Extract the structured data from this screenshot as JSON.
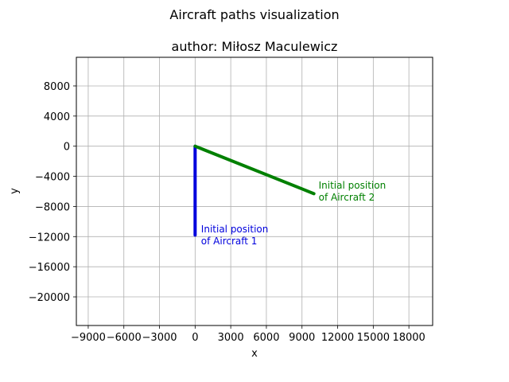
{
  "chart_data": {
    "type": "line",
    "title": "Aircraft paths visualization",
    "subtitle": "author: Miłosz Maculewicz",
    "xlabel": "x",
    "ylabel": "y",
    "xlim": [
      -10000,
      20000
    ],
    "ylim": [
      -23800,
      11800
    ],
    "x_ticks": [
      -9000,
      -6000,
      -3000,
      0,
      3000,
      6000,
      9000,
      12000,
      15000,
      18000
    ],
    "y_ticks": [
      8000,
      4000,
      0,
      -4000,
      -8000,
      -12000,
      -16000,
      -20000
    ],
    "x_tick_labels": [
      "−9000",
      "−6000",
      "−3000",
      "0",
      "3000",
      "6000",
      "9000",
      "12000",
      "15000",
      "18000"
    ],
    "y_tick_labels": [
      "8000",
      "4000",
      "0",
      "−4000",
      "−8000",
      "−12000",
      "−16000",
      "−20000"
    ],
    "grid": true,
    "series": [
      {
        "color": "#0000dd",
        "x": [
          0,
          0
        ],
        "y": [
          -11800,
          0
        ],
        "annotation": {
          "lines": [
            "Initial position",
            "of Aircraft 1"
          ],
          "x": 500,
          "y": -11000
        }
      },
      {
        "color": "#008000",
        "x": [
          10000,
          0
        ],
        "y": [
          -6300,
          0
        ],
        "annotation": {
          "lines": [
            "Initial position",
            "of Aircraft 2"
          ],
          "x": 10400,
          "y": -5200
        }
      }
    ]
  }
}
